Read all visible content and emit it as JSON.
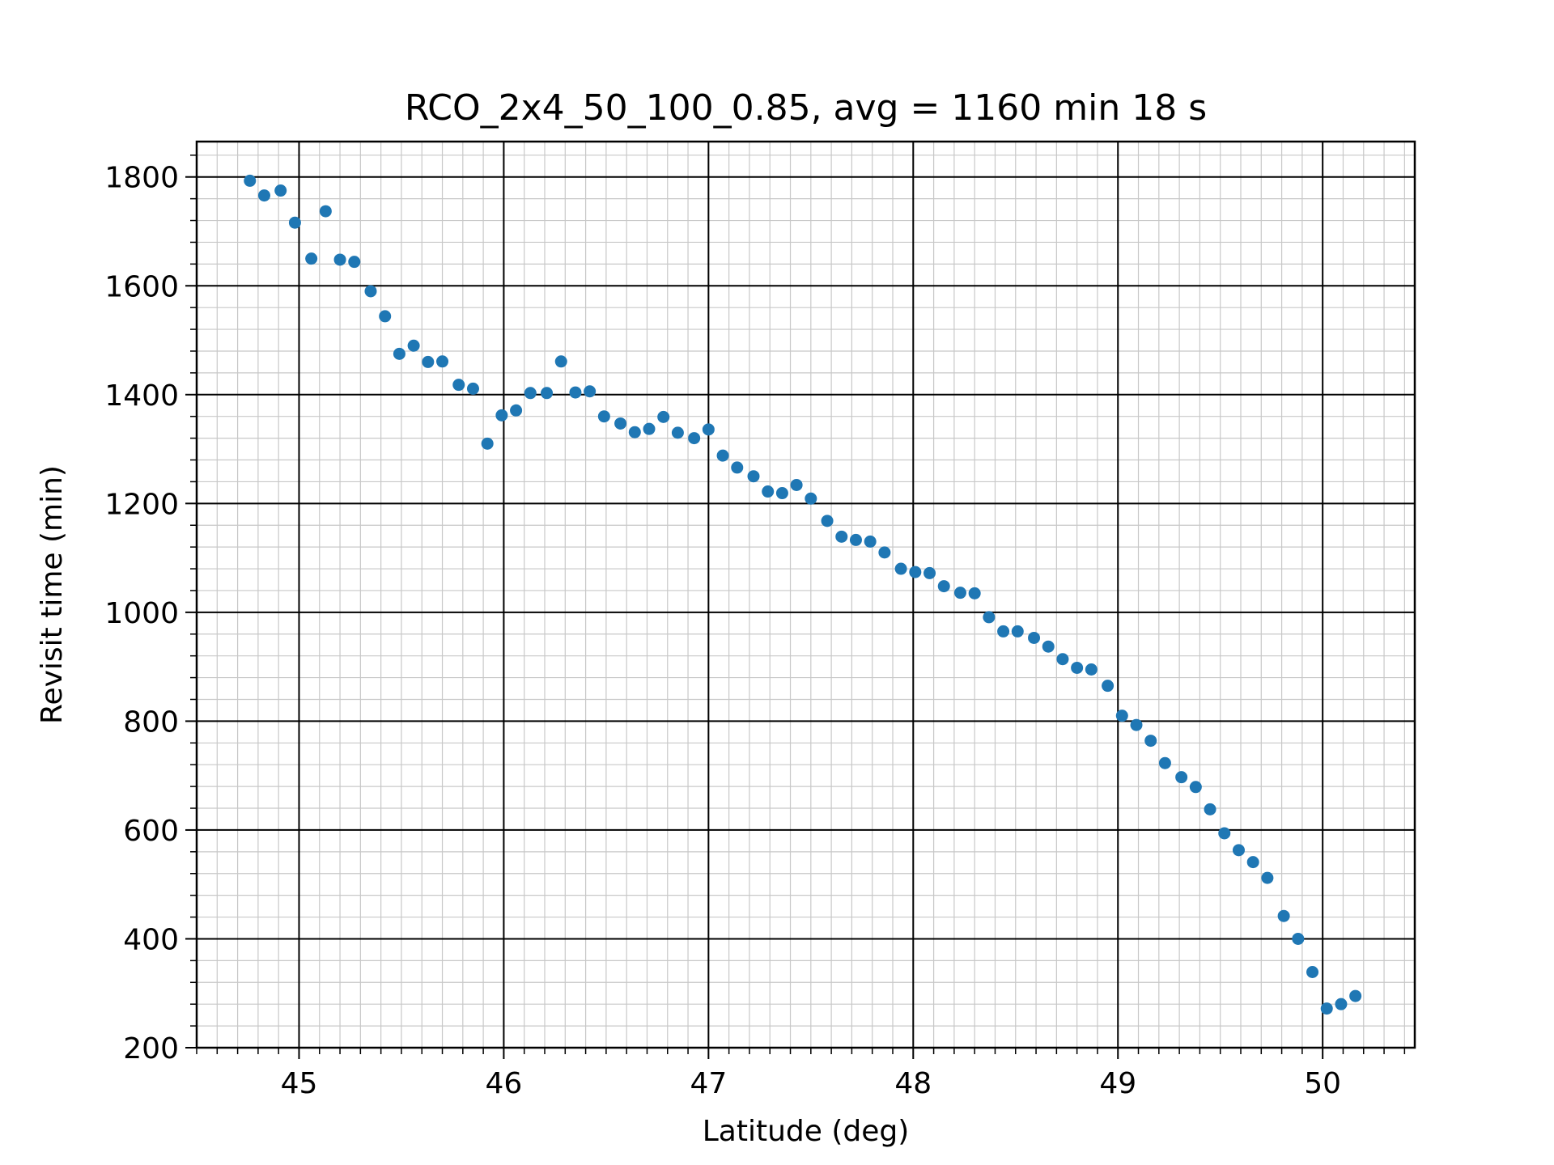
{
  "chart_data": {
    "type": "scatter",
    "title": "RCO_2x4_50_100_0.85, avg = 1160 min 18 s",
    "xlabel": "Latitude (deg)",
    "ylabel": "Revisit time (min)",
    "xlim": [
      44.5,
      50.45
    ],
    "ylim": [
      200,
      1865
    ],
    "xticks": [
      45,
      46,
      47,
      48,
      49,
      50
    ],
    "yticks": [
      200,
      400,
      600,
      800,
      1000,
      1200,
      1400,
      1600,
      1800
    ],
    "grid": true,
    "grid_minor": true,
    "marker_color": "#1f77b4",
    "points": [
      [
        44.76,
        1793
      ],
      [
        44.83,
        1766
      ],
      [
        44.91,
        1775
      ],
      [
        44.98,
        1716
      ],
      [
        45.06,
        1650
      ],
      [
        45.13,
        1737
      ],
      [
        45.2,
        1648
      ],
      [
        45.27,
        1644
      ],
      [
        45.35,
        1590
      ],
      [
        45.42,
        1544
      ],
      [
        45.49,
        1475
      ],
      [
        45.56,
        1490
      ],
      [
        45.63,
        1460
      ],
      [
        45.7,
        1461
      ],
      [
        45.78,
        1418
      ],
      [
        45.85,
        1411
      ],
      [
        45.92,
        1310
      ],
      [
        45.99,
        1362
      ],
      [
        46.06,
        1371
      ],
      [
        46.13,
        1403
      ],
      [
        46.21,
        1403
      ],
      [
        46.28,
        1461
      ],
      [
        46.35,
        1404
      ],
      [
        46.42,
        1406
      ],
      [
        46.49,
        1360
      ],
      [
        46.57,
        1347
      ],
      [
        46.64,
        1331
      ],
      [
        46.71,
        1337
      ],
      [
        46.78,
        1359
      ],
      [
        46.85,
        1330
      ],
      [
        46.93,
        1320
      ],
      [
        47.0,
        1336
      ],
      [
        47.07,
        1288
      ],
      [
        47.14,
        1266
      ],
      [
        47.22,
        1250
      ],
      [
        47.29,
        1222
      ],
      [
        47.36,
        1219
      ],
      [
        47.43,
        1234
      ],
      [
        47.5,
        1209
      ],
      [
        47.58,
        1168
      ],
      [
        47.65,
        1139
      ],
      [
        47.72,
        1133
      ],
      [
        47.79,
        1130
      ],
      [
        47.86,
        1110
      ],
      [
        47.94,
        1080
      ],
      [
        48.01,
        1074
      ],
      [
        48.08,
        1072
      ],
      [
        48.15,
        1048
      ],
      [
        48.23,
        1036
      ],
      [
        48.3,
        1035
      ],
      [
        48.37,
        991
      ],
      [
        48.44,
        965
      ],
      [
        48.51,
        965
      ],
      [
        48.59,
        953
      ],
      [
        48.66,
        937
      ],
      [
        48.73,
        914
      ],
      [
        48.8,
        898
      ],
      [
        48.87,
        895
      ],
      [
        48.95,
        865
      ],
      [
        49.02,
        810
      ],
      [
        49.09,
        793
      ],
      [
        49.16,
        764
      ],
      [
        49.23,
        723
      ],
      [
        49.31,
        697
      ],
      [
        49.38,
        679
      ],
      [
        49.45,
        638
      ],
      [
        49.52,
        594
      ],
      [
        49.59,
        563
      ],
      [
        49.66,
        541
      ],
      [
        49.73,
        512
      ],
      [
        49.81,
        442
      ],
      [
        49.88,
        400
      ],
      [
        49.95,
        339
      ],
      [
        50.02,
        272
      ],
      [
        50.09,
        280
      ],
      [
        50.16,
        295
      ]
    ]
  }
}
